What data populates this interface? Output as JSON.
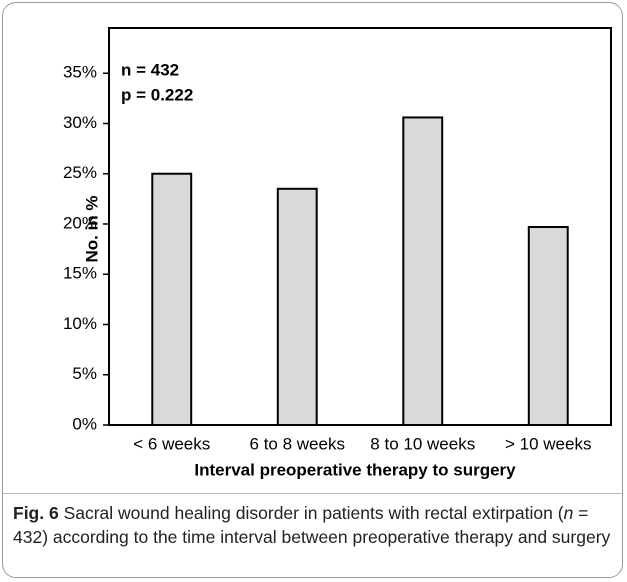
{
  "chart_data": {
    "type": "bar",
    "categories": [
      "< 6 weeks",
      "6 to 8 weeks",
      "8 to 10 weeks",
      "> 10 weeks"
    ],
    "values": [
      25.0,
      23.5,
      30.6,
      19.7
    ],
    "color": "#d9d9d9",
    "ylabel": "No. in %",
    "xlabel": "Interval preoperative therapy to surgery",
    "annotations": [
      "n = 432",
      "p = 0.222"
    ],
    "ylim": [
      0,
      39.5
    ],
    "yticks": [
      {
        "value": 0,
        "label": "0%"
      },
      {
        "value": 5,
        "label": "5%"
      },
      {
        "value": 10,
        "label": "10%"
      },
      {
        "value": 15,
        "label": "15%"
      },
      {
        "value": 20,
        "label": "20%"
      },
      {
        "value": 25,
        "label": "25%"
      },
      {
        "value": 30,
        "label": "30%"
      },
      {
        "value": 35,
        "label": "35%"
      }
    ],
    "grid": false
  },
  "caption": {
    "label": "Fig. 6",
    "text": [
      " Sacral wound healing disorder in patients with rectal extirpation (",
      "n",
      " = 432) according to the time interval between preoperative therapy and surgery"
    ]
  }
}
